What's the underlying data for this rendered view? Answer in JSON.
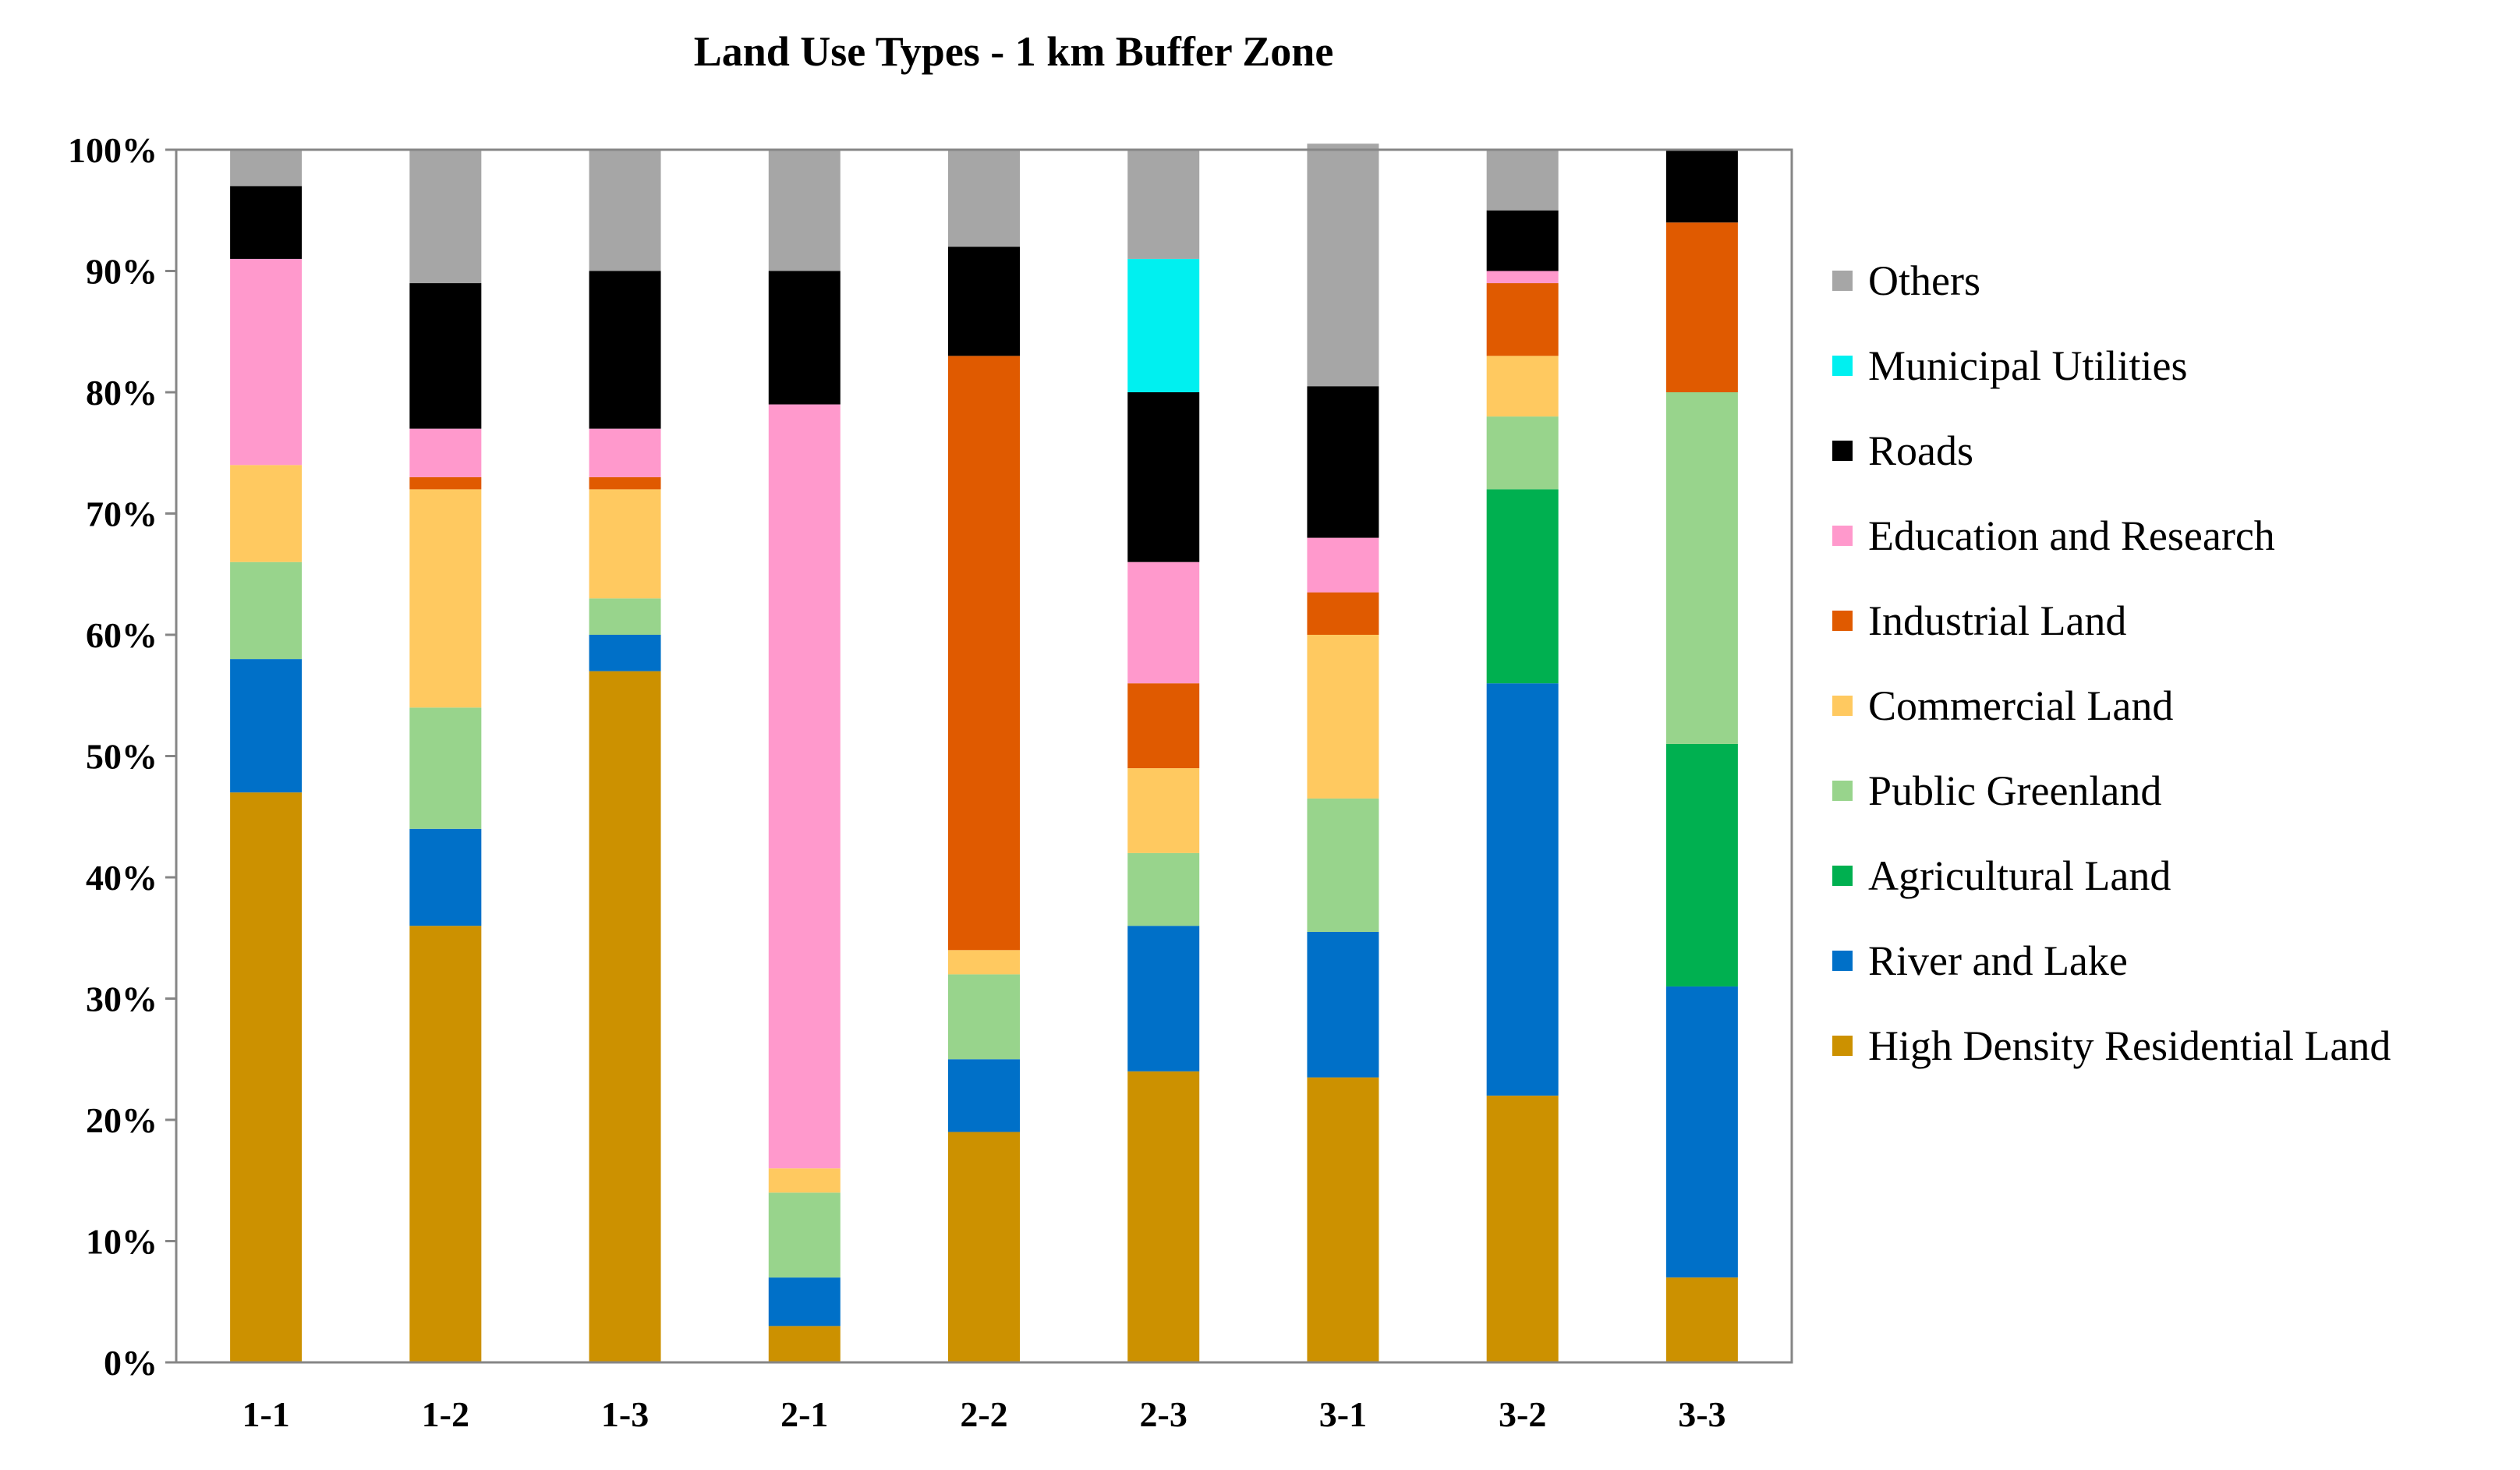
{
  "chart_data": {
    "type": "stacked-bar-100",
    "title": "Land Use Types - 1 km Buffer Zone",
    "xlabel": "",
    "ylabel": "",
    "ylim": [
      0,
      100
    ],
    "y_ticks": [
      "0%",
      "10%",
      "20%",
      "30%",
      "40%",
      "50%",
      "60%",
      "70%",
      "80%",
      "90%",
      "100%"
    ],
    "categories": [
      "1-1",
      "1-2",
      "1-3",
      "2-1",
      "2-2",
      "2-3",
      "3-1",
      "3-2",
      "3-3"
    ],
    "legend_position": "right",
    "series": [
      {
        "name": "High Density Residential Land",
        "color": "#CC9100",
        "values": [
          47,
          36,
          57,
          3,
          19,
          24,
          23.5,
          22,
          7
        ]
      },
      {
        "name": "River  and Lake",
        "color": "#0070C8",
        "values": [
          11,
          8,
          3,
          4,
          6,
          12,
          12,
          34,
          24
        ]
      },
      {
        "name": "Agricultural Land",
        "color": "#00B050",
        "values": [
          0,
          0,
          0,
          0,
          0,
          0,
          0,
          16,
          20
        ]
      },
      {
        "name": "Public Greenland",
        "color": "#98D48C",
        "values": [
          8,
          10,
          3,
          7,
          7,
          6,
          11,
          6,
          29
        ]
      },
      {
        "name": "Commercial Land",
        "color": "#FFC960",
        "values": [
          8,
          18,
          9,
          2,
          2,
          7,
          13.5,
          5,
          0
        ]
      },
      {
        "name": "Industrial Land",
        "color": "#E05A00",
        "values": [
          0,
          1,
          1,
          0,
          49,
          7,
          3.5,
          6,
          14
        ]
      },
      {
        "name": "Education and Research",
        "color": "#FF99CC",
        "values": [
          17,
          4,
          4,
          63,
          0,
          10,
          4.5,
          1,
          0
        ]
      },
      {
        "name": "Roads",
        "color": "#000000",
        "values": [
          6,
          12,
          13,
          11,
          9,
          14,
          12.5,
          5,
          6
        ]
      },
      {
        "name": "Municipal  Utilities",
        "color": "#00F0F0",
        "values": [
          0,
          0,
          0,
          0,
          0,
          11,
          0,
          0,
          0
        ]
      },
      {
        "name": "Others",
        "color": "#A6A6A6",
        "values": [
          3,
          11,
          10,
          10,
          8,
          9,
          20,
          5,
          0
        ]
      }
    ],
    "legend_order": [
      "Others",
      "Municipal  Utilities",
      "Roads",
      "Education and Research",
      "Industrial Land",
      "Commercial Land",
      "Public Greenland",
      "Agricultural Land",
      "River  and Lake",
      "High Density Residential Land"
    ]
  }
}
